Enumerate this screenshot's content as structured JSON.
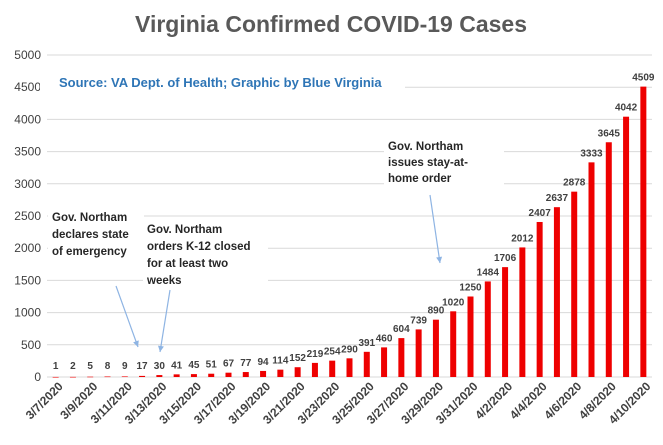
{
  "chart_data": {
    "type": "bar",
    "title": "Virginia Confirmed COVID-19 Cases",
    "source": "Source: VA Dept. of Health; Graphic by Blue Virginia",
    "xlabel": "",
    "ylabel": "",
    "ylim": [
      0,
      5000
    ],
    "yticks": [
      "0",
      "500",
      "1000",
      "1500",
      "2000",
      "2500",
      "3000",
      "3500",
      "4000",
      "4500",
      "5000"
    ],
    "grid": true,
    "bar_color": "#ee0000",
    "categories": [
      "3/7/2020",
      "3/8/2020",
      "3/9/2020",
      "3/10/2020",
      "3/11/2020",
      "3/12/2020",
      "3/13/2020",
      "3/14/2020",
      "3/15/2020",
      "3/16/2020",
      "3/17/2020",
      "3/18/2020",
      "3/19/2020",
      "3/20/2020",
      "3/21/2020",
      "3/22/2020",
      "3/23/2020",
      "3/24/2020",
      "3/25/2020",
      "3/26/2020",
      "3/27/2020",
      "3/28/2020",
      "3/29/2020",
      "3/30/2020",
      "3/31/2020",
      "4/1/2020",
      "4/2/2020",
      "4/3/2020",
      "4/4/2020",
      "4/5/2020",
      "4/6/2020",
      "4/7/2020",
      "4/8/2020",
      "4/9/2020",
      "4/10/2020"
    ],
    "tick_labels_shown": [
      "3/7/2020",
      "3/9/2020",
      "3/11/2020",
      "3/13/2020",
      "3/15/2020",
      "3/17/2020",
      "3/19/2020",
      "3/21/2020",
      "3/23/2020",
      "3/25/2020",
      "3/27/2020",
      "3/29/2020",
      "3/31/2020",
      "4/2/2020",
      "4/4/2020",
      "4/6/2020",
      "4/8/2020",
      "4/10/2020"
    ],
    "values": [
      1,
      2,
      5,
      8,
      9,
      17,
      30,
      41,
      45,
      51,
      67,
      77,
      94,
      114,
      152,
      219,
      254,
      290,
      391,
      460,
      604,
      739,
      890,
      1020,
      1250,
      1484,
      1706,
      2012,
      2407,
      2637,
      2878,
      3333,
      3645,
      4042,
      4509
    ],
    "annotations": [
      {
        "lines": [
          "Gov. Northam",
          "declares state",
          "of emergency"
        ],
        "points_to": "3/12/2020"
      },
      {
        "lines": [
          "Gov. Northam",
          "orders K-12 closed",
          "for at least two",
          "weeks"
        ],
        "points_to": "3/13/2020"
      },
      {
        "lines": [
          "Gov. Northam",
          "issues stay-at-",
          "home order"
        ],
        "points_to": "3/30/2020"
      }
    ]
  }
}
